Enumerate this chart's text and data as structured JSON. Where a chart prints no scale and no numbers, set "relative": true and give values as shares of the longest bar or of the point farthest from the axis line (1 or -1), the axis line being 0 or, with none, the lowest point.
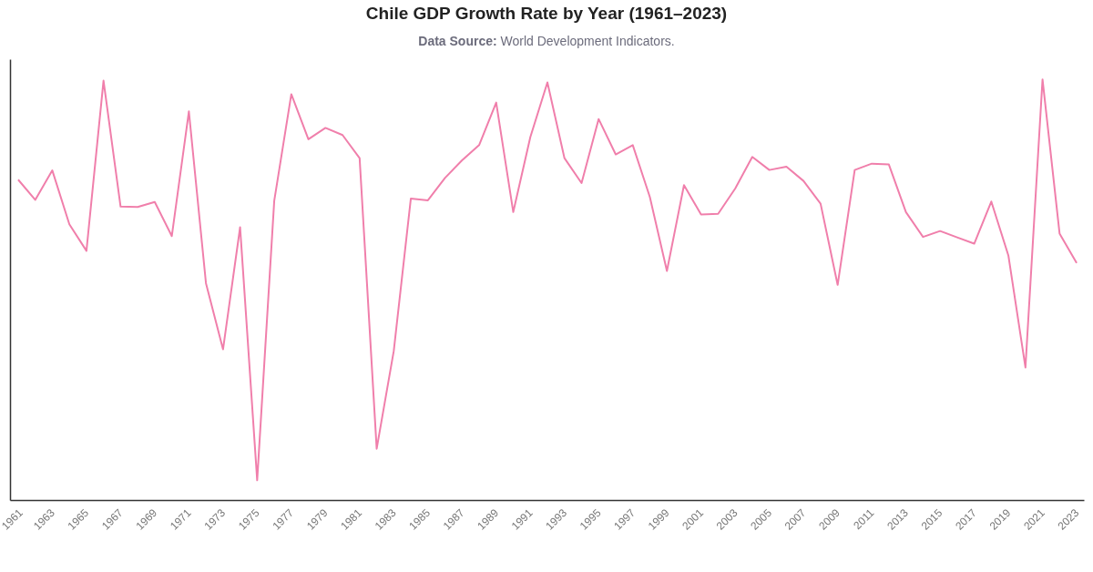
{
  "chart_data": {
    "type": "line",
    "title": "Chile GDP Growth Rate by Year (1961–2023)",
    "subtitle": "Data Source: World Development Indicators.",
    "categories": [
      "1961",
      null,
      "1963",
      null,
      "1965",
      null,
      "1967",
      null,
      "1969",
      null,
      "1971",
      null,
      "1973",
      null,
      "1975",
      null,
      "1977",
      null,
      "1979",
      null,
      "1981",
      null,
      "1983",
      null,
      "1985",
      null,
      "1987",
      null,
      "1989",
      null,
      "1991",
      null,
      "1993",
      null,
      "1995",
      null,
      "1997",
      null,
      "1999",
      null,
      "2001",
      null,
      "2003",
      null,
      "2005",
      null,
      "2007",
      null,
      "2009",
      null,
      "2011",
      null,
      "2013",
      null,
      "2015",
      null,
      "2017",
      null,
      "2019",
      null,
      "2021",
      null,
      "2023"
    ],
    "relative": true,
    "tick_labels": "x",
    "color": "#f07fab",
    "values": [
      0.762,
      0.714,
      0.784,
      0.656,
      0.593,
      0.997,
      0.698,
      0.697,
      0.709,
      0.628,
      0.924,
      0.516,
      0.359,
      0.649,
      0.048,
      0.712,
      0.965,
      0.858,
      0.885,
      0.868,
      0.813,
      0.123,
      0.355,
      0.717,
      0.713,
      0.766,
      0.808,
      0.844,
      0.945,
      0.685,
      0.863,
      0.993,
      0.813,
      0.754,
      0.906,
      0.822,
      0.844,
      0.721,
      0.545,
      0.749,
      0.679,
      0.681,
      0.741,
      0.816,
      0.785,
      0.793,
      0.759,
      0.705,
      0.512,
      0.785,
      0.8,
      0.798,
      0.685,
      0.626,
      0.64,
      0.625,
      0.61,
      0.71,
      0.582,
      0.316,
      1.0,
      0.634,
      0.564
    ]
  }
}
